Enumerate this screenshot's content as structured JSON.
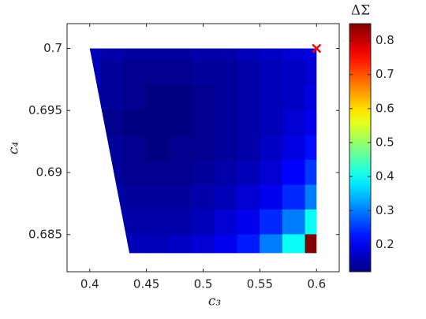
{
  "chart_data": {
    "type": "contourf",
    "xlabel": "c₃",
    "ylabel": "c₄",
    "colorbar_title": "ΔΣ",
    "colormap": "jet",
    "xlim": [
      0.38,
      0.62
    ],
    "ylim": [
      0.682,
      0.702
    ],
    "xticks": [
      0.4,
      0.45,
      0.5,
      0.55,
      0.6
    ],
    "yticks": [
      0.685,
      0.69,
      0.695,
      0.7
    ],
    "clim": [
      0.12,
      0.85
    ],
    "cticks": [
      0.2,
      0.3,
      0.4,
      0.5,
      0.6,
      0.7,
      0.8
    ],
    "region": {
      "x": [
        0.4,
        0.6,
        0.6,
        0.435
      ],
      "y": [
        0.7,
        0.7,
        0.6835,
        0.6835
      ]
    },
    "x": [
      0.4,
      0.42,
      0.44,
      0.46,
      0.48,
      0.5,
      0.52,
      0.54,
      0.56,
      0.58,
      0.6
    ],
    "y": [
      0.7,
      0.698,
      0.696,
      0.694,
      0.692,
      0.69,
      0.688,
      0.686,
      0.684
    ],
    "z": [
      [
        0.16,
        0.15,
        0.14,
        0.14,
        0.14,
        0.15,
        0.15,
        0.16,
        0.17,
        0.18,
        0.19
      ],
      [
        0.16,
        0.14,
        0.13,
        0.13,
        0.13,
        0.14,
        0.14,
        0.15,
        0.16,
        0.17,
        0.18
      ],
      [
        0.15,
        0.14,
        0.13,
        0.12,
        0.12,
        0.13,
        0.14,
        0.15,
        0.16,
        0.17,
        0.19
      ],
      [
        0.15,
        0.13,
        0.12,
        0.12,
        0.12,
        0.13,
        0.14,
        0.15,
        0.16,
        0.18,
        0.2
      ],
      [
        0.15,
        0.14,
        0.13,
        0.12,
        0.13,
        0.13,
        0.14,
        0.15,
        0.17,
        0.19,
        0.22
      ],
      [
        0.16,
        0.14,
        0.13,
        0.13,
        0.13,
        0.14,
        0.15,
        0.16,
        0.18,
        0.21,
        0.25
      ],
      [
        0.16,
        0.15,
        0.14,
        0.14,
        0.14,
        0.15,
        0.16,
        0.18,
        0.2,
        0.24,
        0.3
      ],
      [
        0.17,
        0.16,
        0.15,
        0.15,
        0.15,
        0.16,
        0.18,
        0.2,
        0.24,
        0.3,
        0.4
      ],
      [
        0.18,
        0.17,
        0.16,
        0.16,
        0.17,
        0.18,
        0.2,
        0.23,
        0.3,
        0.4,
        0.85
      ]
    ],
    "marker": {
      "x": 0.6,
      "y": 0.7,
      "color": "#ff0000"
    }
  }
}
